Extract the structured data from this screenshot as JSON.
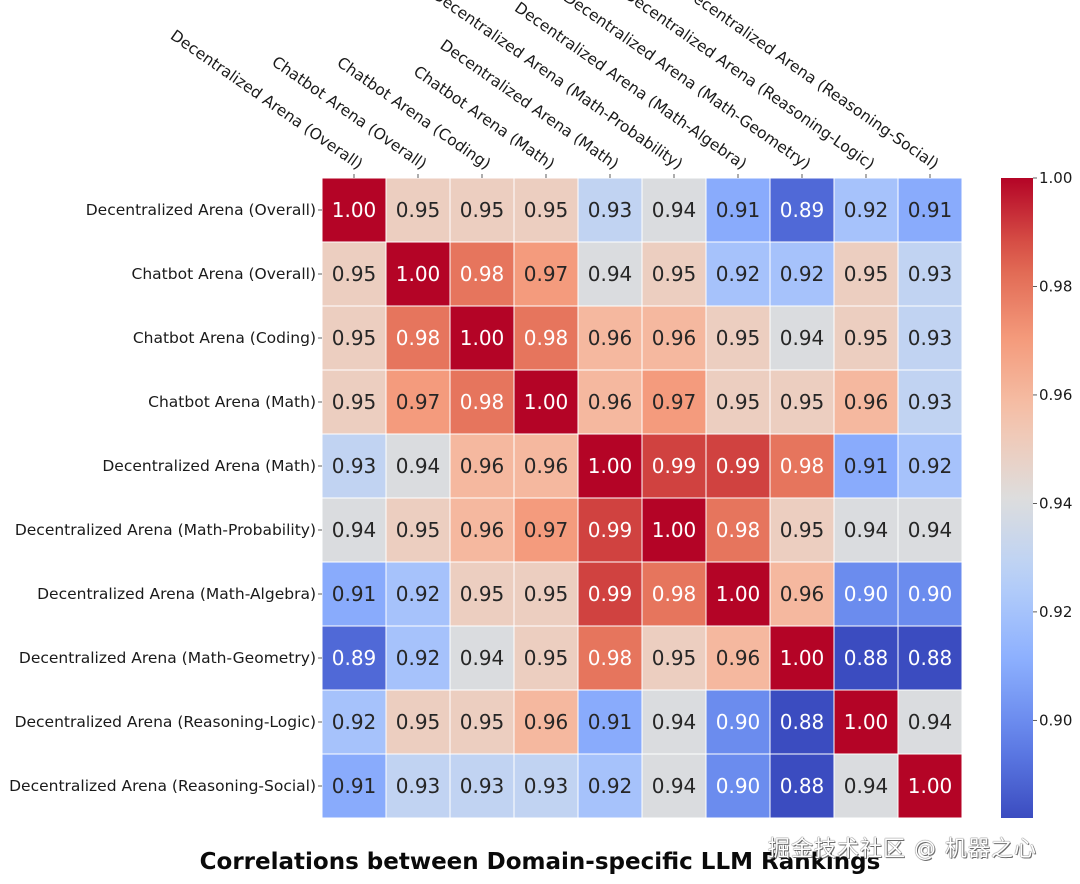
{
  "chart_data": {
    "type": "heatmap",
    "title": "Correlations between Domain-specific LLM Rankings",
    "labels": [
      "Decentralized Arena (Overall)",
      "Chatbot Arena (Overall)",
      "Chatbot Arena (Coding)",
      "Chatbot Arena (Math)",
      "Decentralized Arena (Math)",
      "Decentralized Arena (Math-Probability)",
      "Decentralized Arena (Math-Algebra)",
      "Decentralized Arena (Math-Geometry)",
      "Decentralized Arena (Reasoning-Logic)",
      "Decentralized Arena (Reasoning-Social)"
    ],
    "matrix": [
      [
        1.0,
        0.95,
        0.95,
        0.95,
        0.93,
        0.94,
        0.91,
        0.89,
        0.92,
        0.91
      ],
      [
        0.95,
        1.0,
        0.98,
        0.97,
        0.94,
        0.95,
        0.92,
        0.92,
        0.95,
        0.93
      ],
      [
        0.95,
        0.98,
        1.0,
        0.98,
        0.96,
        0.96,
        0.95,
        0.94,
        0.95,
        0.93
      ],
      [
        0.95,
        0.97,
        0.98,
        1.0,
        0.96,
        0.97,
        0.95,
        0.95,
        0.96,
        0.93
      ],
      [
        0.93,
        0.94,
        0.96,
        0.96,
        1.0,
        0.99,
        0.99,
        0.98,
        0.91,
        0.92
      ],
      [
        0.94,
        0.95,
        0.96,
        0.97,
        0.99,
        1.0,
        0.98,
        0.95,
        0.94,
        0.94
      ],
      [
        0.91,
        0.92,
        0.95,
        0.95,
        0.99,
        0.98,
        1.0,
        0.96,
        0.9,
        0.9
      ],
      [
        0.89,
        0.92,
        0.94,
        0.95,
        0.98,
        0.95,
        0.96,
        1.0,
        0.88,
        0.88
      ],
      [
        0.92,
        0.95,
        0.95,
        0.96,
        0.91,
        0.94,
        0.9,
        0.88,
        1.0,
        0.94
      ],
      [
        0.91,
        0.93,
        0.93,
        0.93,
        0.92,
        0.94,
        0.9,
        0.88,
        0.94,
        1.0
      ]
    ],
    "colormap": "coolwarm",
    "vmin": 0.882,
    "vmax": 1.0,
    "colorbar": {
      "ticks": [
        "0.90",
        "0.92",
        "0.94",
        "0.96",
        "0.98",
        "1.00"
      ],
      "placement": "right"
    },
    "annot_format": "0.00",
    "xlabel_rotation": "-35deg (top)",
    "xlabel": "",
    "ylabel": ""
  },
  "watermark": "掘金技术社区 @ 机器之心"
}
